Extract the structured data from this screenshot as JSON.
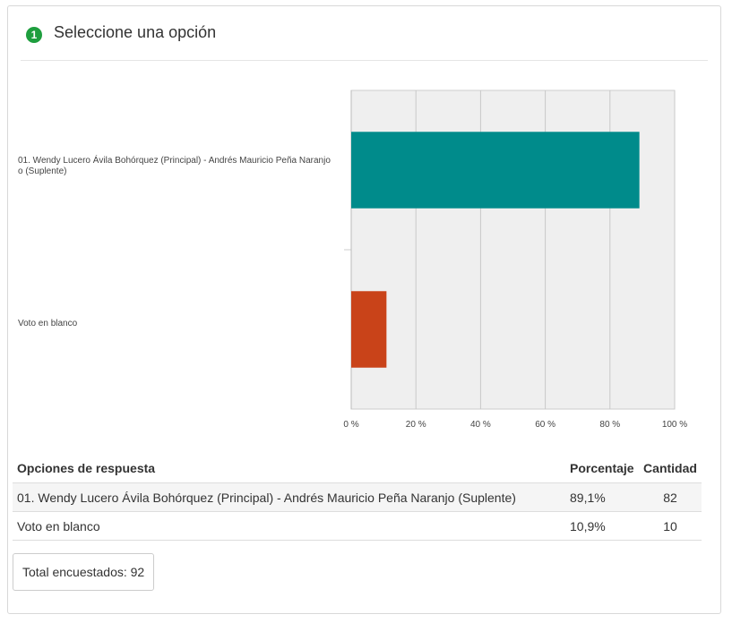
{
  "question": {
    "number": "1",
    "title": "Seleccione una opción"
  },
  "chart_data": {
    "type": "bar",
    "orientation": "horizontal",
    "categories": [
      "01. Wendy Lucero Ávila Bohórquez (Principal) - Andrés Mauricio Peña Naranjo (Suplente)",
      "Voto en blanco"
    ],
    "values": [
      89.1,
      10.9
    ],
    "colors": [
      "#008b8b",
      "#c94319"
    ],
    "xlim": [
      0,
      100
    ],
    "xticks": [
      0,
      20,
      40,
      60,
      80,
      100
    ],
    "tick_suffix": " %",
    "grid": true
  },
  "chart_labels": {
    "cat1_line1": "01. Wendy Lucero Ávila Bohórquez (Principal) - Andrés Mauricio Peña Naranjo",
    "cat1_line2": "o (Suplente)",
    "cat2": "Voto en blanco"
  },
  "table": {
    "headers": {
      "option": "Opciones de respuesta",
      "percent": "Porcentaje",
      "count": "Cantidad"
    },
    "rows": [
      {
        "option": "01. Wendy Lucero Ávila Bohórquez (Principal) - Andrés Mauricio Peña Naranjo (Suplente)",
        "percent": "89,1%",
        "count": "82"
      },
      {
        "option": "Voto en blanco",
        "percent": "10,9%",
        "count": "10"
      }
    ]
  },
  "total": "Total encuestados: 92"
}
